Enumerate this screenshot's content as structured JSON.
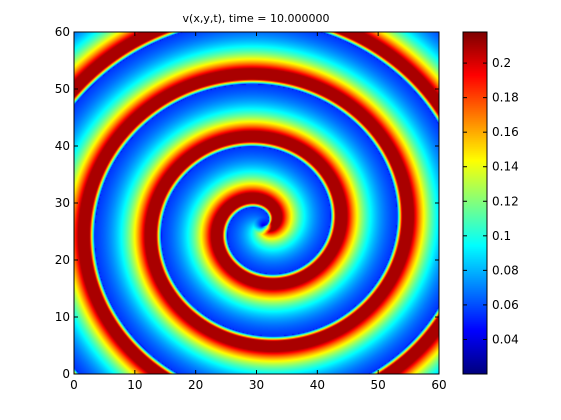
{
  "chart_data": {
    "type": "heatmap",
    "title": "v(x,y,t), time = 10.000000",
    "xlabel": "",
    "ylabel": "",
    "xlim": [
      0,
      60
    ],
    "ylim": [
      0,
      60
    ],
    "x_ticks": [
      0,
      10,
      20,
      30,
      40,
      50,
      60
    ],
    "y_ticks": [
      0,
      10,
      20,
      30,
      40,
      50,
      60
    ],
    "colormap": "jet",
    "colorbar": {
      "range": [
        0.02,
        0.218
      ],
      "ticks": [
        0.04,
        0.06,
        0.08,
        0.1,
        0.12,
        0.14,
        0.16,
        0.18,
        0.2
      ],
      "tick_labels": [
        "0.04",
        "0.06",
        "0.08",
        "0.1",
        "0.12",
        "0.14",
        "0.16",
        "0.18",
        "0.2"
      ]
    },
    "pattern": {
      "shape": "spiral wave",
      "core": [
        31,
        26
      ],
      "wavelength": 11,
      "arms": 3.5,
      "peak_value": 0.21,
      "background_value": 0.04
    }
  }
}
